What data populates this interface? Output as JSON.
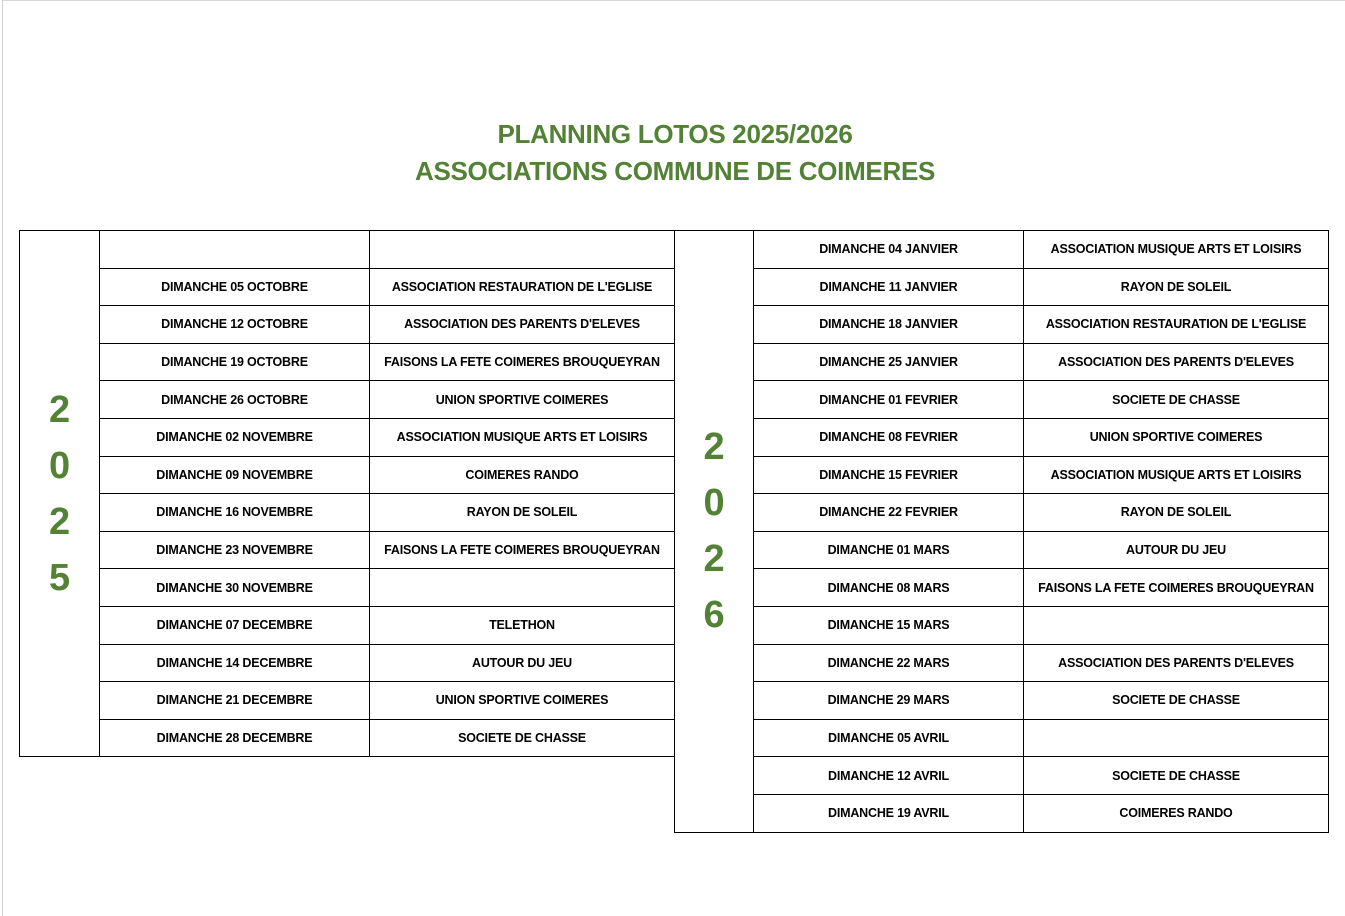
{
  "title": {
    "line1": "PLANNING LOTOS 2025/2026",
    "line2": "ASSOCIATIONS COMMUNE DE COIMERES"
  },
  "colors": {
    "title": "#538135",
    "year": "#538135"
  },
  "tables": [
    {
      "year_digits": [
        "2",
        "0",
        "2",
        "5"
      ],
      "rows": [
        {
          "date": "",
          "association": ""
        },
        {
          "date": "DIMANCHE 05 OCTOBRE",
          "association": "ASSOCIATION RESTAURATION DE L'EGLISE"
        },
        {
          "date": "DIMANCHE 12 OCTOBRE",
          "association": "ASSOCIATION DES PARENTS D'ELEVES"
        },
        {
          "date": "DIMANCHE 19 OCTOBRE",
          "association": "FAISONS LA FETE COIMERES BROUQUEYRAN"
        },
        {
          "date": "DIMANCHE 26 OCTOBRE",
          "association": "UNION SPORTIVE COIMERES"
        },
        {
          "date": "DIMANCHE 02 NOVEMBRE",
          "association": "ASSOCIATION MUSIQUE ARTS ET LOISIRS"
        },
        {
          "date": "DIMANCHE 09 NOVEMBRE",
          "association": "COIMERES RANDO"
        },
        {
          "date": "DIMANCHE 16 NOVEMBRE",
          "association": "RAYON DE SOLEIL"
        },
        {
          "date": "DIMANCHE 23 NOVEMBRE",
          "association": "FAISONS LA FETE COIMERES BROUQUEYRAN"
        },
        {
          "date": "DIMANCHE 30 NOVEMBRE",
          "association": ""
        },
        {
          "date": "DIMANCHE 07 DECEMBRE",
          "association": "TELETHON"
        },
        {
          "date": "DIMANCHE 14 DECEMBRE",
          "association": "AUTOUR DU JEU"
        },
        {
          "date": "DIMANCHE 21 DECEMBRE",
          "association": "UNION SPORTIVE COIMERES"
        },
        {
          "date": "DIMANCHE 28 DECEMBRE",
          "association": "SOCIETE DE CHASSE"
        }
      ]
    },
    {
      "year_digits": [
        "2",
        "0",
        "2",
        "6"
      ],
      "rows": [
        {
          "date": "DIMANCHE 04 JANVIER",
          "association": "ASSOCIATION MUSIQUE ARTS ET LOISIRS"
        },
        {
          "date": "DIMANCHE 11 JANVIER",
          "association": "RAYON DE SOLEIL"
        },
        {
          "date": "DIMANCHE 18 JANVIER",
          "association": "ASSOCIATION RESTAURATION DE L'EGLISE"
        },
        {
          "date": "DIMANCHE 25 JANVIER",
          "association": "ASSOCIATION DES PARENTS D'ELEVES"
        },
        {
          "date": "DIMANCHE 01 FEVRIER",
          "association": "SOCIETE DE CHASSE"
        },
        {
          "date": "DIMANCHE 08 FEVRIER",
          "association": "UNION SPORTIVE COIMERES"
        },
        {
          "date": "DIMANCHE 15 FEVRIER",
          "association": "ASSOCIATION MUSIQUE ARTS ET LOISIRS"
        },
        {
          "date": "DIMANCHE 22 FEVRIER",
          "association": "RAYON DE SOLEIL"
        },
        {
          "date": "DIMANCHE 01 MARS",
          "association": "AUTOUR DU JEU"
        },
        {
          "date": "DIMANCHE 08 MARS",
          "association": "FAISONS LA FETE COIMERES BROUQUEYRAN"
        },
        {
          "date": "DIMANCHE 15 MARS",
          "association": ""
        },
        {
          "date": "DIMANCHE 22 MARS",
          "association": "ASSOCIATION DES PARENTS D'ELEVES"
        },
        {
          "date": "DIMANCHE 29 MARS",
          "association": "SOCIETE DE CHASSE"
        },
        {
          "date": "DIMANCHE 05 AVRIL",
          "association": ""
        },
        {
          "date": "DIMANCHE 12 AVRIL",
          "association": "SOCIETE DE CHASSE"
        },
        {
          "date": "DIMANCHE 19 AVRIL",
          "association": "COIMERES RANDO"
        }
      ]
    }
  ]
}
